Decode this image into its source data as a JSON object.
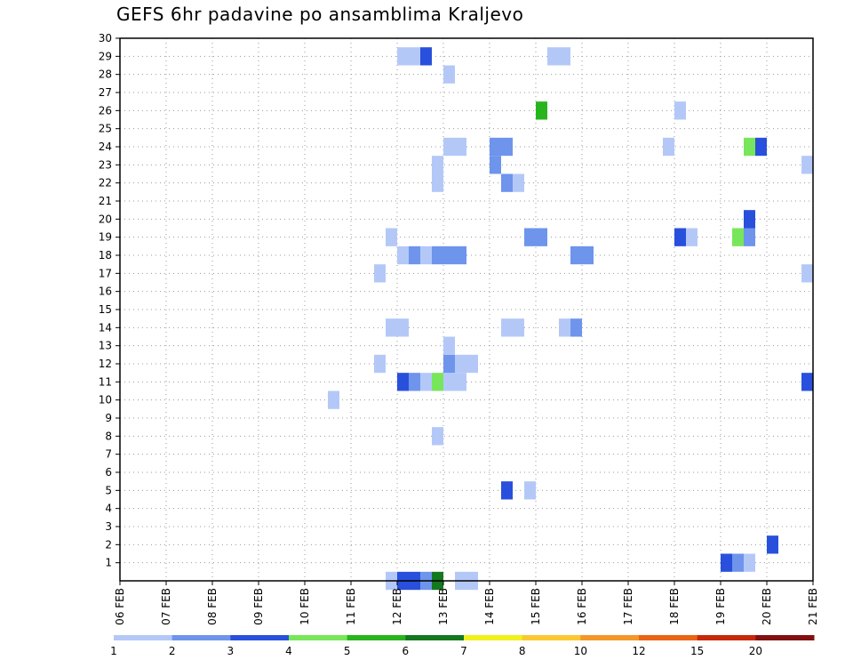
{
  "chart_data": {
    "type": "heatmap",
    "title": "GEFS 6hr padavine po ansamblima Kraljevo",
    "x_tick_labels": [
      "06 FEB",
      "07 FEB",
      "08 FEB",
      "09 FEB",
      "10 FEB",
      "11 FEB",
      "12 FEB",
      "13 FEB",
      "14 FEB",
      "15 FEB",
      "16 FEB",
      "17 FEB",
      "18 FEB",
      "19 FEB",
      "20 FEB",
      "21 FEB"
    ],
    "x_range_days": [
      6,
      21
    ],
    "y_tick_labels": [
      "1",
      "2",
      "3",
      "4",
      "5",
      "6",
      "7",
      "8",
      "9",
      "10",
      "11",
      "12",
      "13",
      "14",
      "15",
      "16",
      "17",
      "18",
      "19",
      "20",
      "21",
      "22",
      "23",
      "24",
      "25",
      "26",
      "27",
      "28",
      "29",
      "30"
    ],
    "y_range": [
      0,
      30
    ],
    "grid": true,
    "color_scale": {
      "labels": [
        "1",
        "2",
        "3",
        "4",
        "5",
        "6",
        "7",
        "8",
        "10",
        "12",
        "15",
        "20"
      ],
      "colors": [
        "#b4c8f8",
        "#6e94ec",
        "#2850dc",
        "#78e65a",
        "#28b41e",
        "#14781e",
        "#f0f01e",
        "#fac832",
        "#f59628",
        "#eb6414",
        "#c8280a",
        "#821010"
      ]
    },
    "cells": [
      {
        "member": 0,
        "day": 11.75,
        "level": 1
      },
      {
        "member": 0,
        "day": 12.0,
        "level": 3
      },
      {
        "member": 0,
        "day": 12.25,
        "level": 3
      },
      {
        "member": 0,
        "day": 12.5,
        "level": 2
      },
      {
        "member": 0,
        "day": 12.75,
        "level": 6
      },
      {
        "member": 0,
        "day": 13.25,
        "level": 1
      },
      {
        "member": 0,
        "day": 13.5,
        "level": 1
      },
      {
        "member": 1,
        "day": 19.0,
        "level": 3
      },
      {
        "member": 1,
        "day": 19.25,
        "level": 2
      },
      {
        "member": 1,
        "day": 19.5,
        "level": 1
      },
      {
        "member": 2,
        "day": 20.0,
        "level": 3
      },
      {
        "member": 5,
        "day": 14.25,
        "level": 3
      },
      {
        "member": 5,
        "day": 14.75,
        "level": 1
      },
      {
        "member": 8,
        "day": 12.75,
        "level": 1
      },
      {
        "member": 10,
        "day": 10.5,
        "level": 1
      },
      {
        "member": 11,
        "day": 12.0,
        "level": 3
      },
      {
        "member": 11,
        "day": 12.25,
        "level": 2
      },
      {
        "member": 11,
        "day": 12.5,
        "level": 1
      },
      {
        "member": 11,
        "day": 12.75,
        "level": 4
      },
      {
        "member": 11,
        "day": 13.0,
        "level": 1
      },
      {
        "member": 11,
        "day": 13.25,
        "level": 1
      },
      {
        "member": 11,
        "day": 20.75,
        "level": 3
      },
      {
        "member": 12,
        "day": 11.5,
        "level": 1
      },
      {
        "member": 12,
        "day": 13.0,
        "level": 2
      },
      {
        "member": 12,
        "day": 13.25,
        "level": 1
      },
      {
        "member": 12,
        "day": 13.5,
        "level": 1
      },
      {
        "member": 13,
        "day": 13.0,
        "level": 1
      },
      {
        "member": 14,
        "day": 11.75,
        "level": 1
      },
      {
        "member": 14,
        "day": 12.0,
        "level": 1
      },
      {
        "member": 14,
        "day": 14.25,
        "level": 1
      },
      {
        "member": 14,
        "day": 14.5,
        "level": 1
      },
      {
        "member": 14,
        "day": 15.5,
        "level": 1
      },
      {
        "member": 14,
        "day": 15.75,
        "level": 2
      },
      {
        "member": 17,
        "day": 11.5,
        "level": 1
      },
      {
        "member": 17,
        "day": 20.75,
        "level": 1
      },
      {
        "member": 18,
        "day": 12.0,
        "level": 1
      },
      {
        "member": 18,
        "day": 12.25,
        "level": 2
      },
      {
        "member": 18,
        "day": 12.5,
        "level": 1
      },
      {
        "member": 18,
        "day": 12.75,
        "level": 2
      },
      {
        "member": 18,
        "day": 13.0,
        "level": 2
      },
      {
        "member": 18,
        "day": 13.25,
        "level": 2
      },
      {
        "member": 18,
        "day": 15.75,
        "level": 2
      },
      {
        "member": 18,
        "day": 16.0,
        "level": 2
      },
      {
        "member": 19,
        "day": 11.75,
        "level": 1
      },
      {
        "member": 19,
        "day": 14.75,
        "level": 2
      },
      {
        "member": 19,
        "day": 15.0,
        "level": 2
      },
      {
        "member": 19,
        "day": 18.0,
        "level": 3
      },
      {
        "member": 19,
        "day": 18.25,
        "level": 1
      },
      {
        "member": 19,
        "day": 19.25,
        "level": 4
      },
      {
        "member": 19,
        "day": 19.5,
        "level": 2
      },
      {
        "member": 20,
        "day": 19.5,
        "level": 3
      },
      {
        "member": 22,
        "day": 12.75,
        "level": 1
      },
      {
        "member": 22,
        "day": 14.25,
        "level": 2
      },
      {
        "member": 22,
        "day": 14.5,
        "level": 1
      },
      {
        "member": 23,
        "day": 12.75,
        "level": 1
      },
      {
        "member": 23,
        "day": 14.0,
        "level": 2
      },
      {
        "member": 23,
        "day": 20.75,
        "level": 1
      },
      {
        "member": 24,
        "day": 13.0,
        "level": 1
      },
      {
        "member": 24,
        "day": 13.25,
        "level": 1
      },
      {
        "member": 24,
        "day": 14.0,
        "level": 2
      },
      {
        "member": 24,
        "day": 14.25,
        "level": 2
      },
      {
        "member": 24,
        "day": 17.75,
        "level": 1
      },
      {
        "member": 24,
        "day": 19.5,
        "level": 4
      },
      {
        "member": 24,
        "day": 19.75,
        "level": 3
      },
      {
        "member": 26,
        "day": 15.0,
        "level": 5
      },
      {
        "member": 26,
        "day": 18.0,
        "level": 1
      },
      {
        "member": 28,
        "day": 13.0,
        "level": 1
      },
      {
        "member": 29,
        "day": 12.0,
        "level": 1
      },
      {
        "member": 29,
        "day": 12.25,
        "level": 1
      },
      {
        "member": 29,
        "day": 12.5,
        "level": 3
      },
      {
        "member": 29,
        "day": 15.25,
        "level": 1
      },
      {
        "member": 29,
        "day": 15.5,
        "level": 1
      }
    ]
  }
}
